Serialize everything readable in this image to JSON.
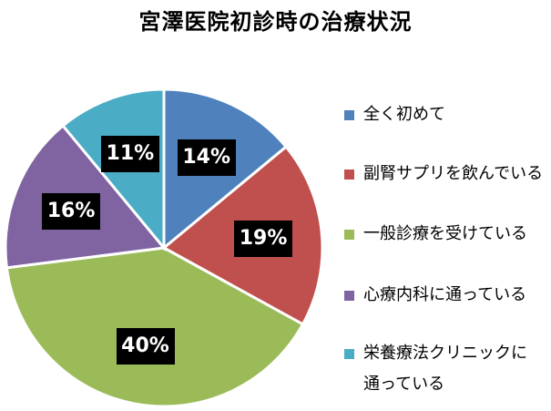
{
  "chart_data": {
    "type": "pie",
    "title": "宮澤医院初診時の治療状況",
    "categories": [
      "全く初めて",
      "副腎サプリを飲んでいる",
      "一般診療を受けている",
      "心療内科に通っている",
      "栄養療法クリニックに通っている"
    ],
    "legend_lines": [
      [
        "全く初めて"
      ],
      [
        "副腎サプリを飲んでいる"
      ],
      [
        "一般診療を受けている"
      ],
      [
        "心療内科に通っている"
      ],
      [
        "栄養療法クリニックに",
        "通っている"
      ]
    ],
    "values": [
      14,
      19,
      40,
      16,
      11
    ],
    "data_labels": [
      "14%",
      "19%",
      "40%",
      "16%",
      "11%"
    ],
    "colors": [
      "#4f81bd",
      "#c0504d",
      "#9bbb59",
      "#8064a2",
      "#4bacc6"
    ],
    "legend_position": "right",
    "start_angle": "12 o'clock, clockwise"
  }
}
